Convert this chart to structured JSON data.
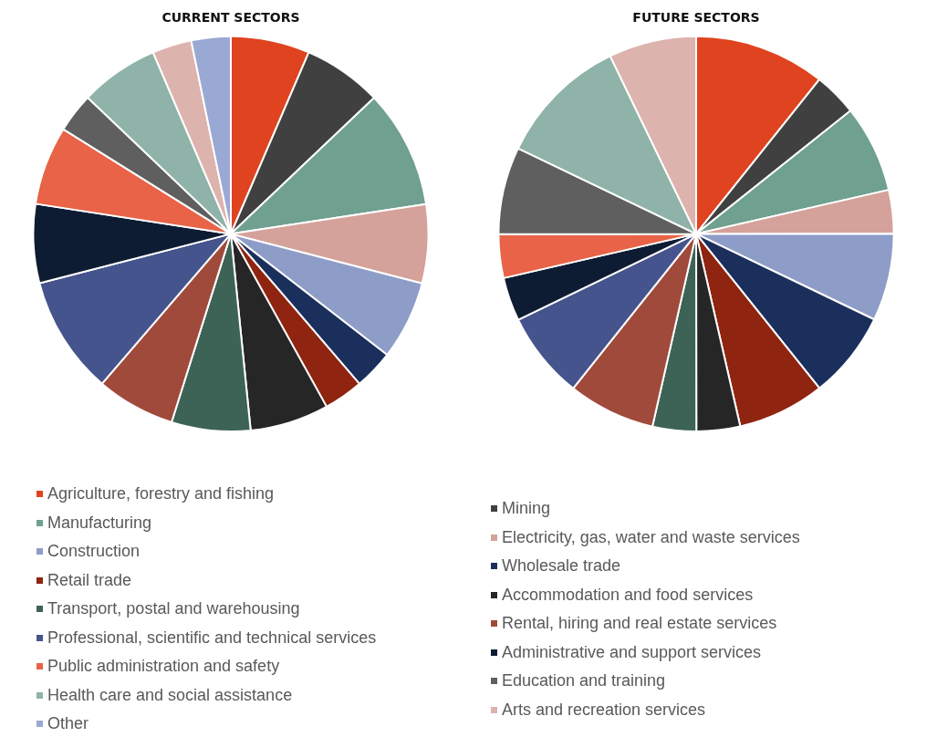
{
  "chart_data": [
    {
      "type": "pie",
      "title": "CURRENT SECTORS",
      "legend": "bottom",
      "categories": [
        "Agriculture, forestry and fishing",
        "Mining",
        "Manufacturing",
        "Electricity, gas, water and waste services",
        "Construction",
        "Wholesale trade",
        "Retail trade",
        "Accommodation and food services",
        "Transport, postal and warehousing",
        "Rental, hiring and real estate services",
        "Professional, scientific and technical services",
        "Administrative and support services",
        "Public administration and safety",
        "Education and training",
        "Health care and social assistance",
        "Arts and recreation services",
        "Other"
      ],
      "values": [
        6.45,
        6.45,
        9.68,
        6.45,
        6.45,
        3.23,
        3.23,
        6.45,
        6.45,
        6.45,
        9.68,
        6.45,
        6.45,
        3.22,
        6.45,
        3.22,
        3.22
      ],
      "colors": [
        "#e0431f",
        "#404040",
        "#6fa090",
        "#d4a29a",
        "#8e9cc8",
        "#1a2f5c",
        "#8f2410",
        "#262626",
        "#3d6356",
        "#a04a3c",
        "#45548c",
        "#0e1c33",
        "#e86347",
        "#5f5f5f",
        "#8fb3a8",
        "#ddb3ae",
        "#9aa8d4"
      ]
    },
    {
      "type": "pie",
      "title": "FUTURE SECTORS",
      "categories": [
        null,
        null,
        null,
        null,
        null,
        null,
        null,
        null,
        null,
        null,
        null,
        null,
        null,
        null,
        null,
        null
      ],
      "values": [
        10.71,
        3.57,
        7.14,
        3.57,
        7.14,
        7.14,
        7.14,
        3.57,
        3.57,
        7.14,
        7.14,
        3.57,
        3.57,
        7.14,
        10.71,
        7.17
      ],
      "colors": [
        "#e0431f",
        "#404040",
        "#6fa090",
        "#d4a29a",
        "#8e9cc8",
        "#1a2f5c",
        "#8f2410",
        "#262626",
        "#3d6356",
        "#a04a3c",
        "#45548c",
        "#0e1c33",
        "#e86347",
        "#5f5f5f",
        "#8fb3a8",
        "#ddb3ae"
      ]
    }
  ]
}
